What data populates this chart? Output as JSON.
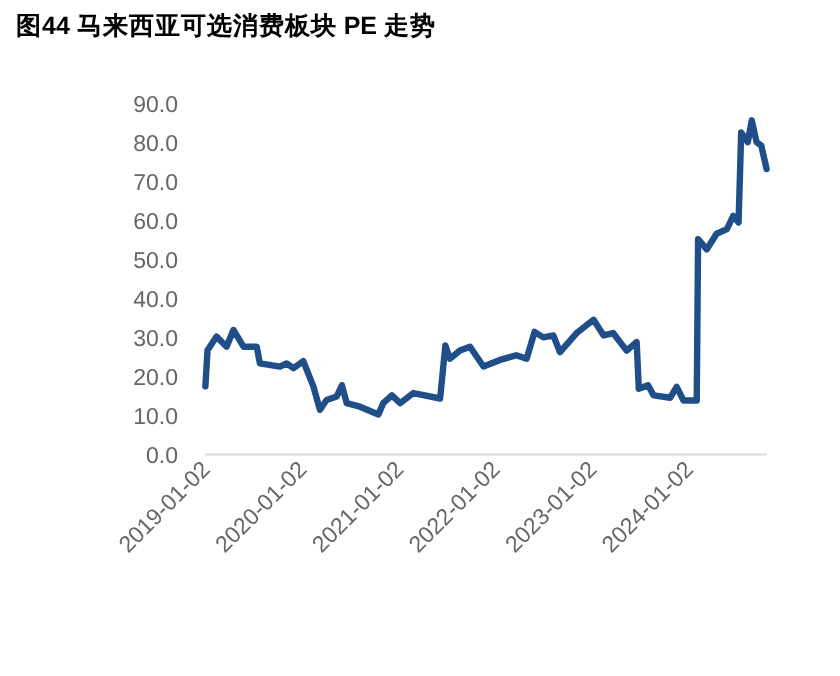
{
  "chart_data": {
    "type": "line",
    "title": "图44 马来西亚可选消费板块 PE 走势",
    "x": [
      "2019-01-02",
      "2019-01-10",
      "2019-02-13",
      "2019-03-23",
      "2019-04-18",
      "2019-05-26",
      "2019-07-15",
      "2019-07-27",
      "2019-10-11",
      "2019-11-05",
      "2019-12-01",
      "2020-01-07",
      "2020-02-14",
      "2020-03-10",
      "2020-04-04",
      "2020-05-12",
      "2020-06-01",
      "2020-06-19",
      "2020-08-08",
      "2020-10-17",
      "2020-11-04",
      "2020-12-07",
      "2021-01-07",
      "2021-02-26",
      "2021-06-07",
      "2021-06-27",
      "2021-07-14",
      "2021-08-21",
      "2021-09-28",
      "2021-11-18",
      "2022-01-19",
      "2022-03-22",
      "2022-04-30",
      "2022-05-30",
      "2022-07-02",
      "2022-08-09",
      "2022-09-03",
      "2022-11-05",
      "2023-01-08",
      "2023-02-15",
      "2023-03-23",
      "2023-05-13",
      "2023-06-20",
      "2023-06-28",
      "2023-08-02",
      "2023-08-23",
      "2023-10-25",
      "2023-11-18",
      "2023-12-14",
      "2024-02-02",
      "2024-02-07",
      "2024-03-11",
      "2024-04-17",
      "2024-05-26",
      "2024-06-19",
      "2024-07-09",
      "2024-07-19",
      "2024-08-13",
      "2024-08-28",
      "2024-09-15",
      "2024-10-03",
      "2024-10-23"
    ],
    "series": [
      {
        "color": "#1f4e89",
        "values": [
          17.5,
          26.8,
          30.3,
          27.7,
          32.0,
          27.7,
          27.7,
          23.4,
          22.6,
          23.4,
          22.2,
          24.0,
          17.5,
          11.5,
          14.0,
          14.9,
          17.8,
          13.2,
          12.3,
          10.3,
          13.2,
          15.2,
          13.2,
          15.8,
          14.4,
          28.0,
          24.6,
          26.7,
          27.7,
          22.6,
          24.3,
          25.5,
          24.6,
          31.5,
          30.1,
          30.6,
          26.3,
          31.2,
          34.6,
          30.6,
          31.2,
          26.7,
          28.9,
          16.9,
          17.8,
          15.2,
          14.6,
          17.4,
          13.9,
          13.9,
          55.3,
          52.7,
          56.7,
          57.9,
          61.3,
          59.6,
          82.7,
          80.2,
          85.8,
          80.2,
          79.3,
          73.3
        ]
      }
    ],
    "xlim": [
      "2019-01-02",
      "2024-10-23"
    ],
    "xticks": [
      "2019-01-02",
      "2020-01-02",
      "2021-01-02",
      "2022-01-02",
      "2023-01-02",
      "2024-01-02"
    ],
    "ylim": [
      0,
      90
    ],
    "yticks": [
      {
        "value": 0,
        "label": "0.0"
      },
      {
        "value": 10,
        "label": "10.0"
      },
      {
        "value": 20,
        "label": "20.0"
      },
      {
        "value": 30,
        "label": "30.0"
      },
      {
        "value": 40,
        "label": "40.0"
      },
      {
        "value": 50,
        "label": "50.0"
      },
      {
        "value": 60,
        "label": "60.0"
      },
      {
        "value": 70,
        "label": "70.0"
      },
      {
        "value": 80,
        "label": "80.0"
      },
      {
        "value": 90,
        "label": "90.0"
      }
    ],
    "line_style": "solid"
  }
}
